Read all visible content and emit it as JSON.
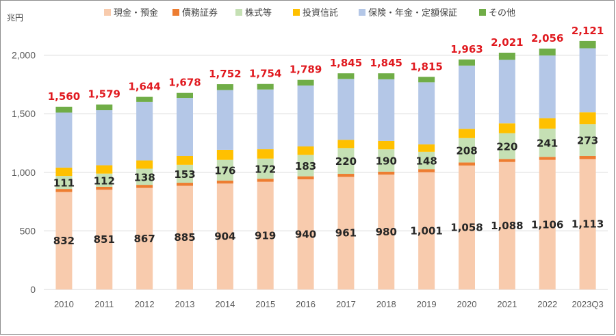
{
  "chart_data": {
    "type": "bar",
    "stacked": true,
    "unit_label": "兆円",
    "categories": [
      "2010",
      "2011",
      "2012",
      "2013",
      "2014",
      "2015",
      "2016",
      "2017",
      "2018",
      "2019",
      "2020",
      "2021",
      "2022",
      "2023Q3"
    ],
    "yticks": [
      "0",
      "500",
      "1,000",
      "1,500",
      "2,000"
    ],
    "ylim": [
      0,
      2200
    ],
    "grid": true,
    "legend_position": "top",
    "series": [
      {
        "name": "現金・預金",
        "color": "#f8cbad",
        "values": [
          832,
          851,
          867,
          885,
          904,
          919,
          940,
          961,
          980,
          1001,
          1058,
          1088,
          1106,
          1113
        ],
        "labels": [
          "832",
          "851",
          "867",
          "885",
          "904",
          "919",
          "940",
          "961",
          "980",
          "1,001",
          "1,058",
          "1,088",
          "1,106",
          "1,113"
        ]
      },
      {
        "name": "債務証券",
        "color": "#ed7d31",
        "values": [
          26,
          26,
          26,
          26,
          26,
          26,
          26,
          26,
          26,
          26,
          26,
          26,
          26,
          26
        ]
      },
      {
        "name": "株式等",
        "color": "#c5e0b4",
        "values": [
          111,
          112,
          138,
          153,
          176,
          172,
          183,
          220,
          190,
          148,
          208,
          220,
          241,
          273
        ],
        "labels": [
          "111",
          "112",
          "138",
          "153",
          "176",
          "172",
          "183",
          "220",
          "190",
          "148",
          "208",
          "220",
          "241",
          "273"
        ]
      },
      {
        "name": "投資信託",
        "color": "#ffc000",
        "values": [
          71,
          71,
          70,
          75,
          86,
          80,
          72,
          70,
          72,
          63,
          79,
          84,
          89,
          100
        ]
      },
      {
        "name": "保険・年金・定額保証",
        "color": "#b4c7e7",
        "values": [
          470,
          470,
          500,
          496,
          510,
          510,
          520,
          520,
          526,
          530,
          540,
          542,
          535,
          547
        ]
      },
      {
        "name": "その他",
        "color": "#70ad47",
        "values": [
          50,
          49,
          43,
          43,
          50,
          47,
          48,
          48,
          51,
          47,
          52,
          61,
          59,
          62
        ]
      }
    ],
    "totals": [
      1560,
      1579,
      1644,
      1678,
      1752,
      1754,
      1789,
      1845,
      1845,
      1815,
      1963,
      2021,
      2056,
      2121
    ],
    "total_labels": [
      "1,560",
      "1,579",
      "1,644",
      "1,678",
      "1,752",
      "1,754",
      "1,789",
      "1,845",
      "1,845",
      "1,815",
      "1,963",
      "2,021",
      "2,056",
      "2,121"
    ]
  }
}
